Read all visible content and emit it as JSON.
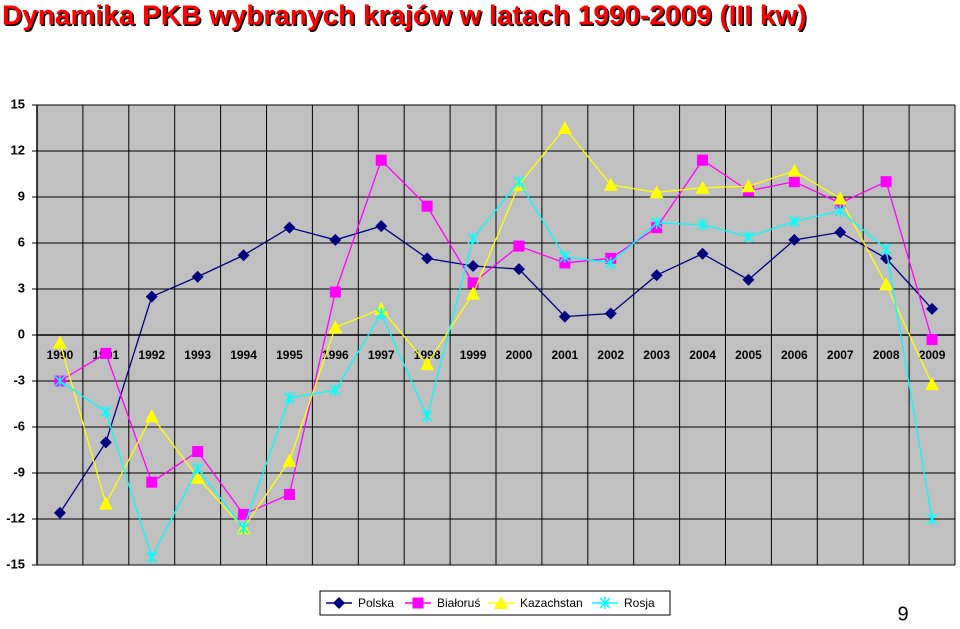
{
  "chart_data": {
    "type": "line",
    "title": "Dynamika PKB wybranych krajów w latach 1990-2009 (III kw)",
    "categories": [
      "1990",
      "1991",
      "1992",
      "1993",
      "1994",
      "1995",
      "1996",
      "1997",
      "1998",
      "1999",
      "2000",
      "2001",
      "2002",
      "2003",
      "2004",
      "2005",
      "2006",
      "2007",
      "2008",
      "2009"
    ],
    "series": [
      {
        "name": "Polska",
        "color": "#000080",
        "marker": "diamond",
        "values": [
          -11.6,
          -7.0,
          2.5,
          3.8,
          5.2,
          7.0,
          6.2,
          7.1,
          5.0,
          4.5,
          4.3,
          1.2,
          1.4,
          3.9,
          5.3,
          3.6,
          6.2,
          6.7,
          5.0,
          1.7
        ]
      },
      {
        "name": "Białoruś",
        "color": "#ff00ff",
        "marker": "square",
        "values": [
          -3.0,
          -1.2,
          -9.6,
          -7.6,
          -11.7,
          -10.4,
          2.8,
          11.4,
          8.4,
          3.4,
          5.8,
          4.7,
          5.0,
          7.0,
          11.4,
          9.4,
          10.0,
          8.6,
          10.0,
          -0.3
        ]
      },
      {
        "name": "Kazachstan",
        "color": "#ffff00",
        "marker": "triangle",
        "values": [
          -0.5,
          -11.0,
          -5.3,
          -9.3,
          -12.6,
          -8.2,
          0.5,
          1.7,
          -1.9,
          2.7,
          9.8,
          13.5,
          9.8,
          9.3,
          9.6,
          9.7,
          10.7,
          8.9,
          3.3,
          -3.2
        ]
      },
      {
        "name": "Rosja",
        "color": "#00ffff",
        "marker": "cross",
        "values": [
          -3.0,
          -5.0,
          -14.5,
          -8.7,
          -12.6,
          -4.1,
          -3.6,
          1.4,
          -5.3,
          6.3,
          10.0,
          5.1,
          4.7,
          7.3,
          7.2,
          6.4,
          7.4,
          8.1,
          5.6,
          -12.0
        ]
      }
    ],
    "ylim": [
      -15,
      15
    ],
    "yticks": [
      -15,
      -12,
      -9,
      -6,
      -3,
      0,
      3,
      6,
      9,
      12,
      15
    ],
    "grid": true,
    "legend": "bottom"
  },
  "page_number": "9"
}
